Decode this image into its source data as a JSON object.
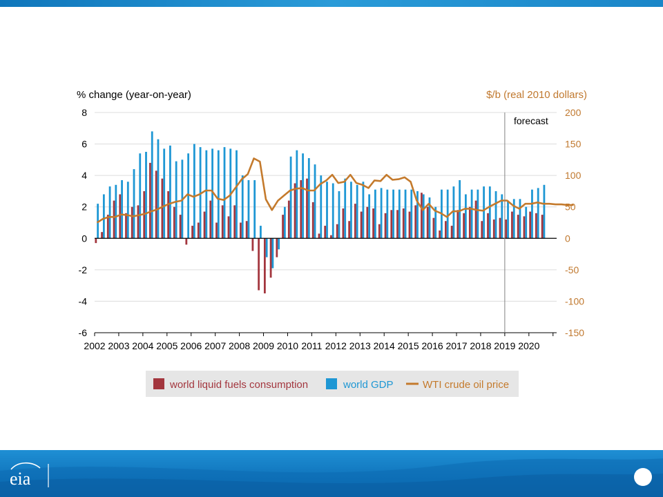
{
  "chart_data": {
    "type": "bar",
    "left_axis_label": "% change (year-on-year)",
    "right_axis_label": "$/b (real 2010 dollars)",
    "forecast_label": "forecast",
    "ylim": [
      -6,
      8
    ],
    "yticks": [
      "8",
      "6",
      "4",
      "2",
      "0",
      "-2",
      "-4",
      "-6"
    ],
    "y2lim": [
      -150,
      200
    ],
    "y2ticks": [
      "200",
      "150",
      "100",
      "50",
      "0",
      "-50",
      "-100",
      "-150"
    ],
    "years": [
      "2002",
      "2003",
      "2004",
      "2005",
      "2006",
      "2007",
      "2008",
      "2009",
      "2010",
      "2011",
      "2012",
      "2013",
      "2014",
      "2015",
      "2016",
      "2017",
      "2018",
      "2019",
      "2020"
    ],
    "forecast_start": "2019",
    "series": [
      {
        "name": "world liquid fuels consumption",
        "color": "#a3363e",
        "values": [
          -0.3,
          0.4,
          1.5,
          2.4,
          2.8,
          1.6,
          2.0,
          2.1,
          3.0,
          4.8,
          4.3,
          3.8,
          3.0,
          2.0,
          1.5,
          -0.4,
          0.8,
          1.0,
          1.7,
          2.4,
          1.0,
          2.1,
          1.4,
          2.1,
          1.0,
          1.1,
          -0.8,
          -3.3,
          -3.5,
          -2.5,
          -1.2,
          1.5,
          2.4,
          3.5,
          3.7,
          3.8,
          2.3,
          0.3,
          0.8,
          0.2,
          0.9,
          1.9,
          1.1,
          2.2,
          1.7,
          2.0,
          1.9,
          0.9,
          1.6,
          1.8,
          1.8,
          1.9,
          1.7,
          2.1,
          2.9,
          2.0,
          1.3,
          0.5,
          1.1,
          0.8,
          1.8,
          1.6,
          2.0,
          2.4,
          1.1,
          1.6,
          1.2,
          1.3,
          1.2,
          1.7,
          1.5,
          1.4,
          1.7,
          1.6,
          1.5
        ]
      },
      {
        "name": "world GDP",
        "color": "#1e97d4",
        "values": [
          2.2,
          2.8,
          3.3,
          3.4,
          3.7,
          3.6,
          4.4,
          5.4,
          5.5,
          6.8,
          6.3,
          5.7,
          5.9,
          4.9,
          5.0,
          5.4,
          6.0,
          5.8,
          5.6,
          5.7,
          5.6,
          5.8,
          5.7,
          5.6,
          4.0,
          3.7,
          3.7,
          0.8,
          -1.2,
          -1.9,
          -0.7,
          2.0,
          5.2,
          5.6,
          5.4,
          5.1,
          4.7,
          4.0,
          3.6,
          3.5,
          3.0,
          3.8,
          3.6,
          3.4,
          3.6,
          2.8,
          3.1,
          3.2,
          3.1,
          3.1,
          3.1,
          3.1,
          3.1,
          3.0,
          2.8,
          2.6,
          2.0,
          3.1,
          3.1,
          3.3,
          3.7,
          2.8,
          3.1,
          3.1,
          3.3,
          3.3,
          3.0,
          2.8,
          2.4,
          2.5,
          2.5,
          2.0,
          3.1,
          3.2,
          3.4
        ]
      },
      {
        "name": "WTI crude oil price",
        "color": "#c47a2c",
        "values": [
          25,
          31,
          34,
          34,
          38,
          37,
          35,
          37,
          39,
          43,
          46,
          51,
          55,
          58,
          60,
          70,
          66,
          70,
          76,
          76,
          63,
          61,
          68,
          81,
          94,
          102,
          127,
          122,
          62,
          45,
          60,
          68,
          76,
          79,
          80,
          76,
          76,
          86,
          92,
          101,
          88,
          90,
          101,
          88,
          85,
          80,
          92,
          91,
          101,
          93,
          94,
          97,
          90,
          60,
          45,
          55,
          44,
          40,
          34,
          43,
          43,
          47,
          47,
          45,
          44,
          50,
          55,
          60,
          60,
          52,
          47,
          55,
          55,
          57,
          55,
          55,
          54,
          54,
          53,
          53
        ]
      }
    ],
    "legend": [
      "world liquid fuels consumption",
      "world GDP",
      "WTI crude oil price"
    ],
    "legend_position": "bottom"
  },
  "brand": {
    "logo_text": "eia"
  }
}
